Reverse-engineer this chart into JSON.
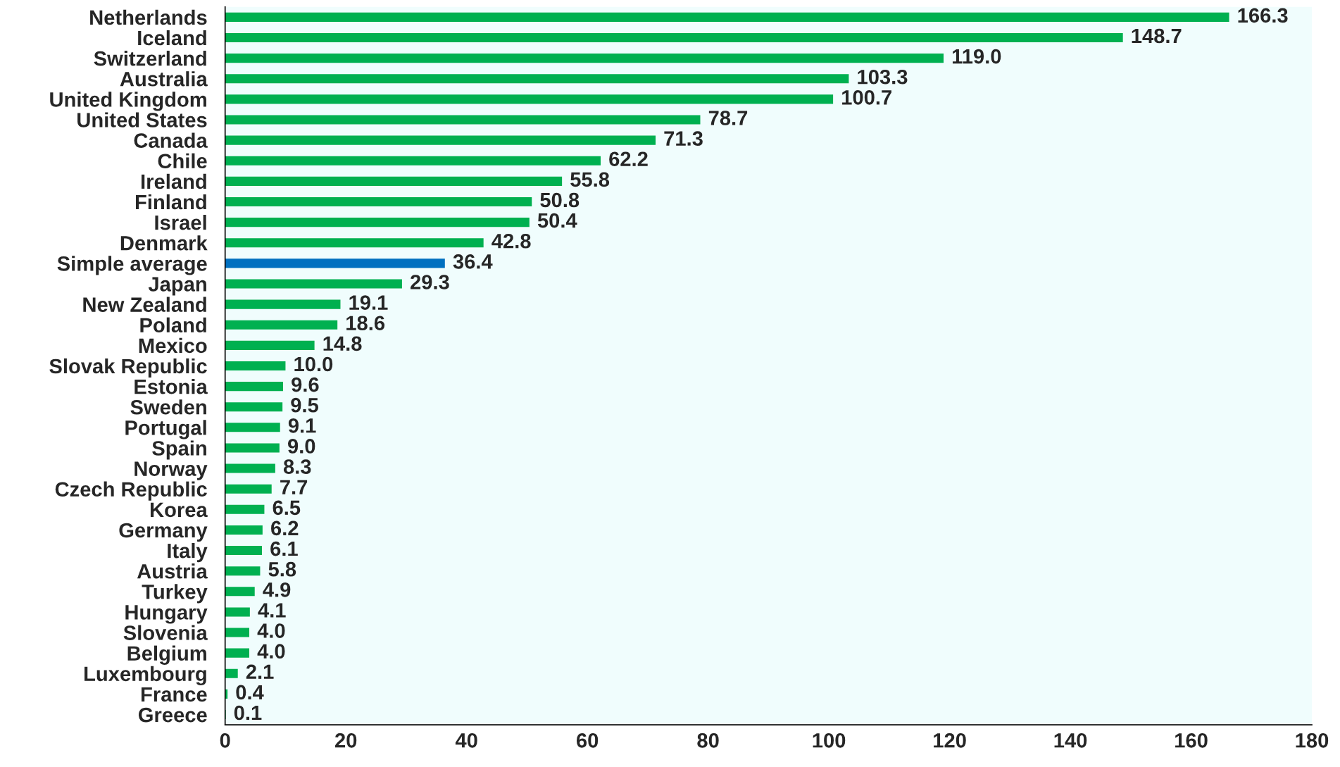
{
  "chart_data": {
    "type": "bar",
    "orientation": "horizontal",
    "categories": [
      "Netherlands",
      "Iceland",
      "Switzerland",
      "Australia",
      "United Kingdom",
      "United States",
      "Canada",
      "Chile",
      "Ireland",
      "Finland",
      "Israel",
      "Denmark",
      "Simple average",
      "Japan",
      "New Zealand",
      "Poland",
      "Mexico",
      "Slovak Republic",
      "Estonia",
      "Sweden",
      "Portugal",
      "Spain",
      "Norway",
      "Czech Republic",
      "Korea",
      "Germany",
      "Italy",
      "Austria",
      "Turkey",
      "Hungary",
      "Slovenia",
      "Belgium",
      "Luxembourg",
      "France",
      "Greece"
    ],
    "values": [
      166.3,
      148.7,
      119.0,
      103.3,
      100.7,
      78.7,
      71.3,
      62.2,
      55.8,
      50.8,
      50.4,
      42.8,
      36.4,
      29.3,
      19.1,
      18.6,
      14.8,
      10.0,
      9.6,
      9.5,
      9.1,
      9.0,
      8.3,
      7.7,
      6.5,
      6.2,
      6.1,
      5.8,
      4.9,
      4.1,
      4.0,
      4.0,
      2.1,
      0.4,
      0.1
    ],
    "colors": [
      "#00b050",
      "#00b050",
      "#00b050",
      "#00b050",
      "#00b050",
      "#00b050",
      "#00b050",
      "#00b050",
      "#00b050",
      "#00b050",
      "#00b050",
      "#00b050",
      "#0070c0",
      "#00b050",
      "#00b050",
      "#00b050",
      "#00b050",
      "#00b050",
      "#00b050",
      "#00b050",
      "#00b050",
      "#00b050",
      "#00b050",
      "#00b050",
      "#00b050",
      "#00b050",
      "#00b050",
      "#00b050",
      "#00b050",
      "#00b050",
      "#00b050",
      "#00b050",
      "#00b050",
      "#00b050",
      "#00b050"
    ],
    "xlim": [
      0,
      180
    ],
    "xticks": [
      0,
      20,
      40,
      60,
      80,
      100,
      120,
      140,
      160,
      180
    ],
    "value_labels": [
      "166.3",
      "148.7",
      "119.0",
      "103.3",
      "100.7",
      "78.7",
      "71.3",
      "62.2",
      "55.8",
      "50.8",
      "50.4",
      "42.8",
      "36.4",
      "29.3",
      "19.1",
      "18.6",
      "14.8",
      "10.0",
      "9.6",
      "9.5",
      "9.1",
      "9.0",
      "8.3",
      "7.7",
      "6.5",
      "6.2",
      "6.1",
      "5.8",
      "4.9",
      "4.1",
      "4.0",
      "4.0",
      "2.1",
      "0.4",
      "0.1"
    ],
    "grid": false
  }
}
